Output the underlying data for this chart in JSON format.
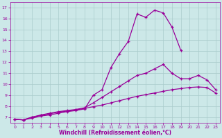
{
  "xlabel": "Windchill (Refroidissement éolien,°C)",
  "bg_color": "#cce8e8",
  "grid_color": "#aacccc",
  "line_color": "#990099",
  "xlim": [
    -0.5,
    23.5
  ],
  "ylim": [
    6.5,
    17.5
  ],
  "xticks": [
    0,
    1,
    2,
    3,
    4,
    5,
    6,
    7,
    8,
    9,
    10,
    11,
    12,
    13,
    14,
    15,
    16,
    17,
    18,
    19,
    20,
    21,
    22,
    23
  ],
  "yticks": [
    7,
    8,
    9,
    10,
    11,
    12,
    13,
    14,
    15,
    16,
    17
  ],
  "line1_x": [
    0,
    1,
    2,
    3,
    4,
    5,
    6,
    7,
    8,
    9,
    10,
    11,
    12,
    13,
    14,
    15,
    16,
    17,
    18,
    19
  ],
  "line1_y": [
    6.8,
    6.75,
    6.9,
    7.1,
    7.2,
    7.35,
    7.5,
    7.6,
    7.75,
    9.0,
    9.5,
    11.5,
    12.8,
    13.9,
    16.4,
    16.1,
    16.75,
    16.5,
    15.2,
    13.1
  ],
  "line2_x": [
    0,
    1,
    2,
    3,
    4,
    5,
    6,
    7,
    8,
    9,
    10,
    11,
    12,
    13,
    14,
    15,
    16,
    17,
    18,
    19,
    20,
    21,
    22,
    23
  ],
  "line2_y": [
    6.8,
    6.75,
    7.0,
    7.2,
    7.35,
    7.5,
    7.6,
    7.7,
    7.85,
    8.3,
    8.8,
    9.3,
    9.8,
    10.3,
    10.8,
    11.0,
    11.4,
    11.8,
    11.0,
    10.5,
    10.5,
    10.8,
    10.4,
    9.5
  ],
  "line3_x": [
    0,
    1,
    2,
    3,
    4,
    5,
    6,
    7,
    8,
    9,
    10,
    11,
    12,
    13,
    14,
    15,
    16,
    17,
    18,
    19,
    20,
    21,
    22,
    23
  ],
  "line3_y": [
    6.8,
    6.75,
    7.0,
    7.15,
    7.3,
    7.45,
    7.55,
    7.65,
    7.8,
    7.95,
    8.1,
    8.3,
    8.5,
    8.7,
    8.9,
    9.05,
    9.2,
    9.35,
    9.5,
    9.6,
    9.7,
    9.75,
    9.7,
    9.2
  ]
}
